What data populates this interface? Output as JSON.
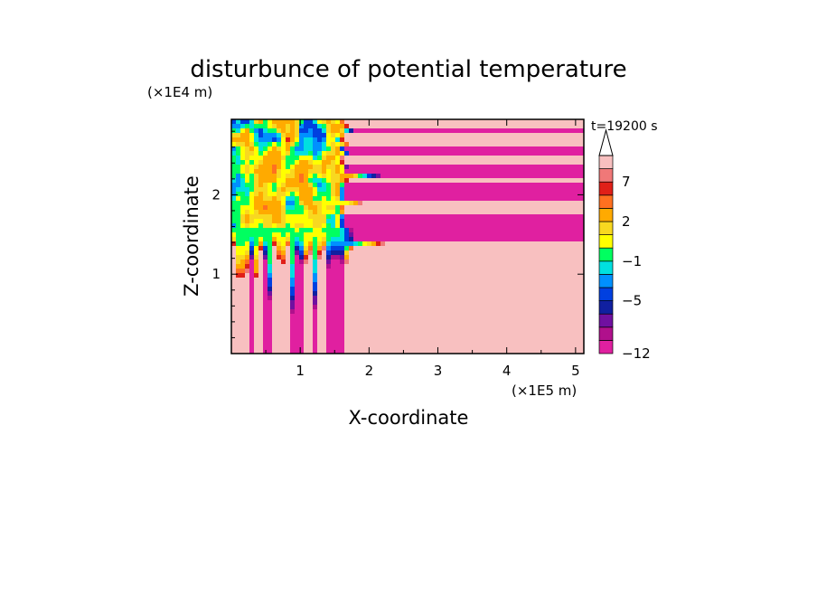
{
  "chart_data": {
    "type": "heatmap",
    "title": "disturbunce of potential temperature",
    "xlabel": "X-coordinate",
    "ylabel": "Z-coordinate",
    "x_unit": "(×1E5 m)",
    "y_unit": "(×1E4 m)",
    "time_label": "t=19200 s",
    "xlim": [
      0,
      5.12
    ],
    "ylim": [
      0,
      2.95
    ],
    "x_ticks": [
      1,
      2,
      3,
      4,
      5
    ],
    "y_ticks": [
      1,
      2
    ],
    "colorbar": {
      "levels": [
        -12,
        -11,
        -9,
        -7,
        -5,
        -3,
        -2,
        -1,
        0,
        1,
        2,
        4,
        5,
        7,
        9,
        11
      ],
      "tick_labels": [
        {
          "label": "7",
          "value": 7
        },
        {
          "label": "2",
          "value": 2
        },
        {
          "label": "−1",
          "value": -1
        },
        {
          "label": "−5",
          "value": -5
        },
        {
          "label": "−12",
          "value": -12
        }
      ],
      "colors": [
        "#e020a0",
        "#b0108c",
        "#7010a0",
        "#1020a0",
        "#0040e0",
        "#0090ff",
        "#00e0e0",
        "#00ff60",
        "#ffff00",
        "#f8d820",
        "#ffaa00",
        "#ff7020",
        "#e02018",
        "#f07878",
        "#f8c0c0"
      ],
      "extend": "max"
    }
  }
}
